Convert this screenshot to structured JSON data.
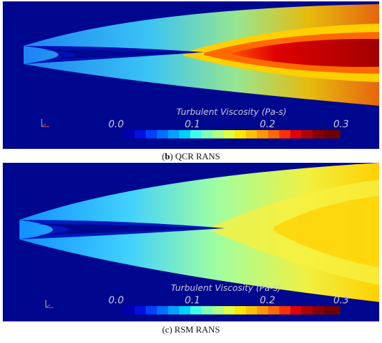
{
  "panels": [
    {
      "caption_letter": "b",
      "caption_text": "QCR RANS",
      "colorbar": {
        "title": "Turbulent Viscosity (Pa-s)",
        "ticks": [
          "0.0",
          "0.1",
          "0.2",
          "0.3"
        ]
      }
    },
    {
      "caption_letter": "c",
      "caption_text": "RSM RANS",
      "colorbar": {
        "title": "Turbulent Viscosity (Pa-s)",
        "ticks": [
          "0.0",
          "0.1",
          "0.2",
          "0.3"
        ]
      }
    }
  ],
  "colors": {
    "background_field": "#00078f",
    "colormap": [
      "#0000a0",
      "#0018ff",
      "#0070ff",
      "#00c0ff",
      "#3dffe0",
      "#9effa0",
      "#e8ff3a",
      "#ffc800",
      "#ff7800",
      "#e00000",
      "#8a0000"
    ]
  }
}
